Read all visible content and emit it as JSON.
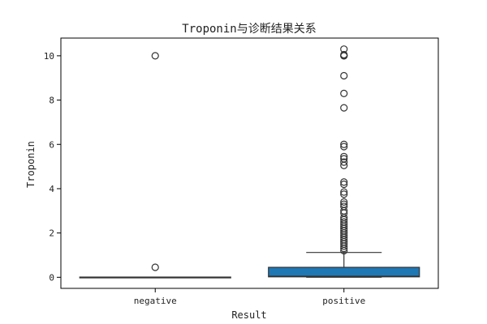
{
  "chart_data": {
    "type": "box",
    "title": "Troponin与诊断结果关系",
    "xlabel": "Result",
    "ylabel": "Troponin",
    "categories": [
      "negative",
      "positive"
    ],
    "ylim": [
      -0.5,
      10.8
    ],
    "yticks": [
      0,
      2,
      4,
      6,
      8,
      10
    ],
    "grid": false,
    "legend": "none",
    "boxes": [
      {
        "category": "negative",
        "min": 0.0,
        "q1": 0.0,
        "median": 0.0,
        "q3": 0.01,
        "max": 0.01,
        "outliers": [
          10.0,
          0.45
        ],
        "fill": "#1f77b4"
      },
      {
        "category": "positive",
        "min": 0.0,
        "q1": 0.02,
        "median": 0.05,
        "q3": 0.45,
        "max": 1.12,
        "outliers": [
          10.3,
          10.05,
          10.0,
          10.0,
          9.1,
          8.3,
          7.65,
          6.0,
          5.9,
          5.45,
          5.35,
          5.2,
          5.05,
          4.3,
          4.2,
          3.85,
          3.75,
          3.4,
          3.3,
          3.2,
          3.0,
          2.9,
          2.7,
          2.6,
          2.5,
          2.4,
          2.3,
          2.2,
          2.1,
          2.0,
          1.9,
          1.8,
          1.7,
          1.6,
          1.5,
          1.4,
          1.3,
          1.2
        ],
        "fill": "#1f77b4"
      }
    ],
    "colors": {
      "box_fill": "#1f77b4",
      "box_line": "#333333",
      "axis": "#000000"
    }
  }
}
